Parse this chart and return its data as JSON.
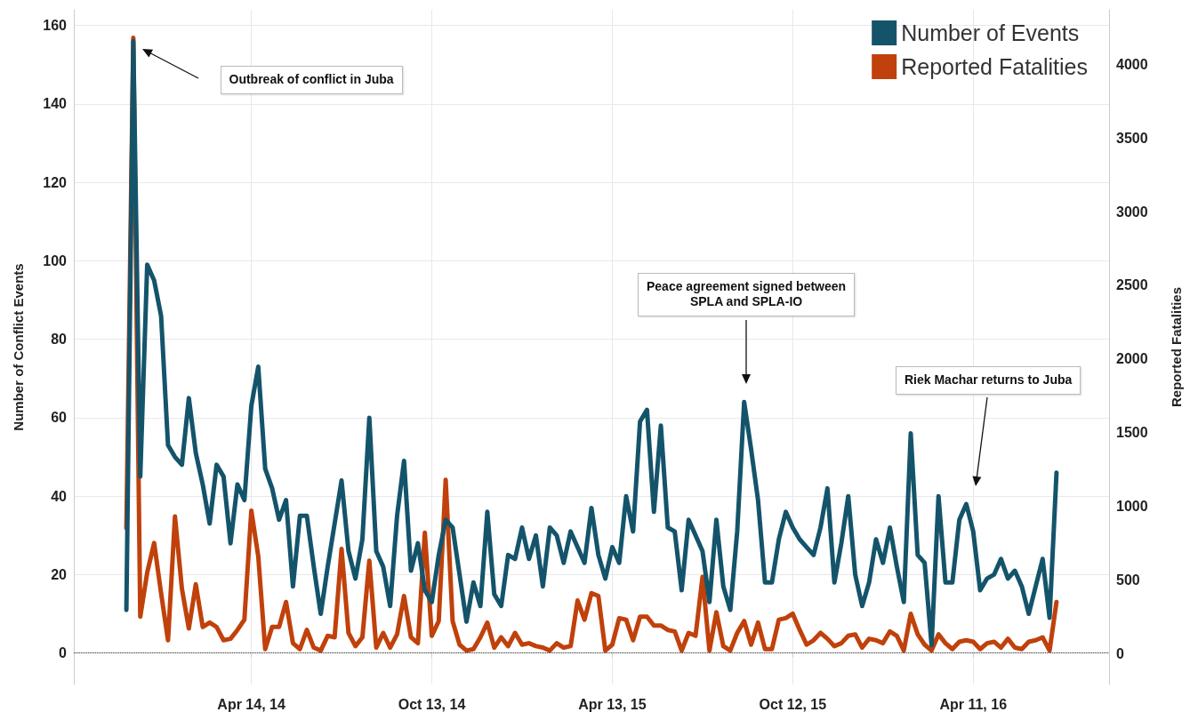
{
  "chart_data": {
    "type": "line",
    "xlabel": null,
    "ylabel": "Number of Conflict Events",
    "y2label": "Reported Fatalities",
    "x": [
      "2013-12-09",
      "2013-12-16",
      "2013-12-23",
      "2013-12-30",
      "2014-01-06",
      "2014-01-13",
      "2014-01-20",
      "2014-01-27",
      "2014-02-03",
      "2014-02-10",
      "2014-02-17",
      "2014-02-24",
      "2014-03-03",
      "2014-03-10",
      "2014-03-17",
      "2014-03-24",
      "2014-03-31",
      "2014-04-07",
      "2014-04-14",
      "2014-04-21",
      "2014-04-28",
      "2014-05-05",
      "2014-05-12",
      "2014-05-19",
      "2014-05-26",
      "2014-06-02",
      "2014-06-09",
      "2014-06-16",
      "2014-06-23",
      "2014-06-30",
      "2014-07-07",
      "2014-07-14",
      "2014-07-21",
      "2014-07-28",
      "2014-08-04",
      "2014-08-11",
      "2014-08-18",
      "2014-08-25",
      "2014-09-01",
      "2014-09-08",
      "2014-09-15",
      "2014-09-22",
      "2014-09-29",
      "2014-10-06",
      "2014-10-13",
      "2014-10-20",
      "2014-10-27",
      "2014-11-03",
      "2014-11-10",
      "2014-11-17",
      "2014-11-24",
      "2014-12-01",
      "2014-12-08",
      "2014-12-15",
      "2014-12-22",
      "2014-12-29",
      "2015-01-05",
      "2015-01-12",
      "2015-01-19",
      "2015-01-26",
      "2015-02-02",
      "2015-02-09",
      "2015-02-16",
      "2015-02-23",
      "2015-03-02",
      "2015-03-09",
      "2015-03-16",
      "2015-03-23",
      "2015-03-30",
      "2015-04-06",
      "2015-04-13",
      "2015-04-20",
      "2015-04-27",
      "2015-05-04",
      "2015-05-11",
      "2015-05-18",
      "2015-05-25",
      "2015-06-01",
      "2015-06-08",
      "2015-06-15",
      "2015-06-22",
      "2015-06-29",
      "2015-07-06",
      "2015-07-13",
      "2015-07-20",
      "2015-07-27",
      "2015-08-03",
      "2015-08-10",
      "2015-08-17",
      "2015-08-24",
      "2015-08-31",
      "2015-09-07",
      "2015-09-14",
      "2015-09-21",
      "2015-09-28",
      "2015-10-05",
      "2015-10-12",
      "2015-10-19",
      "2015-10-26",
      "2015-11-02",
      "2015-11-09",
      "2015-11-16",
      "2015-11-23",
      "2015-11-30",
      "2015-12-07",
      "2015-12-14",
      "2015-12-21",
      "2015-12-28",
      "2016-01-04",
      "2016-01-11",
      "2016-01-18",
      "2016-01-25",
      "2016-02-01",
      "2016-02-08",
      "2016-02-15",
      "2016-02-22",
      "2016-02-29",
      "2016-03-07",
      "2016-03-14",
      "2016-03-21",
      "2016-03-28",
      "2016-04-04",
      "2016-04-11",
      "2016-04-18",
      "2016-04-25",
      "2016-05-02",
      "2016-05-09",
      "2016-05-16",
      "2016-05-23",
      "2016-05-30",
      "2016-06-06",
      "2016-06-13",
      "2016-06-20",
      "2016-06-27",
      "2016-07-04"
    ],
    "series": [
      {
        "name": "Number of Events",
        "color": "#14546b",
        "axis": "y",
        "values": [
          11,
          156,
          45,
          99,
          95,
          86,
          53,
          50,
          48,
          65,
          51,
          43,
          33,
          48,
          45,
          28,
          43,
          39,
          63,
          73,
          47,
          42,
          34,
          39,
          17,
          35,
          35,
          22,
          10,
          22,
          33,
          44,
          26,
          19,
          29,
          60,
          26,
          22,
          12,
          35,
          49,
          21,
          28,
          16,
          13,
          25,
          34,
          32,
          20,
          8,
          18,
          12,
          36,
          15,
          12,
          25,
          24,
          32,
          24,
          30,
          17,
          32,
          30,
          23,
          31,
          27,
          23,
          37,
          25,
          19,
          27,
          23,
          40,
          31,
          59,
          62,
          36,
          58,
          32,
          31,
          16,
          34,
          30,
          26,
          13,
          34,
          17,
          11,
          31,
          64,
          52,
          39,
          18,
          18,
          29,
          36,
          32,
          29,
          27,
          25,
          32,
          42,
          18,
          28,
          40,
          20,
          12,
          18,
          29,
          23,
          32,
          22,
          13,
          56,
          25,
          23,
          2,
          40,
          18,
          18,
          34,
          38,
          31,
          16,
          19,
          20,
          24,
          19,
          21,
          17,
          10,
          17,
          24,
          9,
          46
        ]
      },
      {
        "name": "Reported Fatalities",
        "color": "#c0410b",
        "axis": "y2",
        "values": [
          850,
          4180,
          250,
          550,
          750,
          410,
          90,
          930,
          440,
          170,
          470,
          180,
          210,
          180,
          90,
          100,
          160,
          230,
          970,
          660,
          30,
          180,
          180,
          350,
          70,
          30,
          160,
          40,
          20,
          120,
          110,
          710,
          140,
          50,
          110,
          630,
          40,
          140,
          40,
          130,
          390,
          110,
          70,
          820,
          120,
          220,
          1180,
          220,
          60,
          20,
          30,
          110,
          210,
          40,
          110,
          50,
          140,
          60,
          70,
          50,
          40,
          20,
          70,
          40,
          50,
          360,
          230,
          410,
          390,
          20,
          60,
          240,
          230,
          90,
          250,
          250,
          190,
          190,
          160,
          150,
          20,
          140,
          120,
          520,
          20,
          280,
          50,
          20,
          140,
          220,
          60,
          210,
          30,
          30,
          230,
          240,
          270,
          160,
          60,
          90,
          140,
          100,
          50,
          70,
          120,
          130,
          40,
          100,
          90,
          70,
          150,
          120,
          20,
          270,
          130,
          60,
          20,
          130,
          70,
          30,
          80,
          90,
          80,
          30,
          70,
          80,
          40,
          100,
          40,
          30,
          80,
          90,
          110,
          20,
          350
        ]
      }
    ],
    "xlim": [
      "2013-10-17",
      "2016-08-26"
    ],
    "xticks": [
      {
        "value": "2014-04-14",
        "label": "Apr 14, 14"
      },
      {
        "value": "2014-10-13",
        "label": "Oct 13, 14"
      },
      {
        "value": "2015-04-13",
        "label": "Apr 13, 15"
      },
      {
        "value": "2015-10-12",
        "label": "Oct 12, 15"
      },
      {
        "value": "2016-04-11",
        "label": "Apr 11, 16"
      }
    ],
    "ylim": [
      -8,
      164
    ],
    "yticks": [
      0,
      20,
      40,
      60,
      80,
      100,
      120,
      140,
      160
    ],
    "y2lim": [
      -210,
      4370
    ],
    "y2ticks": [
      0,
      500,
      1000,
      1500,
      2000,
      2500,
      3000,
      3500,
      4000
    ],
    "ref_lines": [
      {
        "axis": "y",
        "value": 0,
        "line_style": "dotted",
        "color": "#444444"
      }
    ],
    "annotations": [
      "Outbreak of conflict in Juba",
      "Peace agreement signed between\nSPLA and SPLA-IO",
      "Riek Machar returns to Juba"
    ],
    "grid": true,
    "legend": "top right",
    "marker": "none",
    "line_style": "solid"
  }
}
